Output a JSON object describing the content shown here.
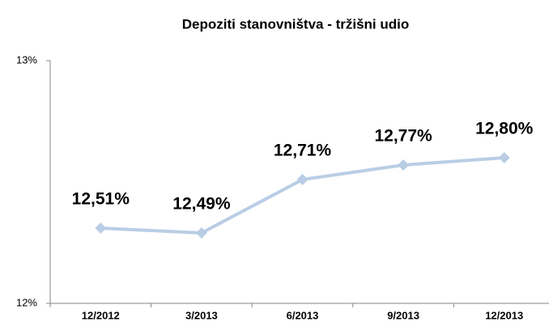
{
  "chart_data": {
    "type": "line",
    "title": "Depoziti stanovništva - tržišni udio",
    "categories": [
      "12/2012",
      "3/2013",
      "6/2013",
      "9/2013",
      "12/2013"
    ],
    "values": [
      12.51,
      12.49,
      12.71,
      12.77,
      12.8
    ],
    "value_labels": [
      "12,51%",
      "12,49%",
      "12,71%",
      "12,77%",
      "12,80%"
    ],
    "color": "#b9cde5",
    "ylim": [
      12.2,
      13.2
    ],
    "yticks": [
      {
        "value": 12.2,
        "label": "12%"
      },
      {
        "value": 13.2,
        "label": "13%"
      }
    ]
  }
}
